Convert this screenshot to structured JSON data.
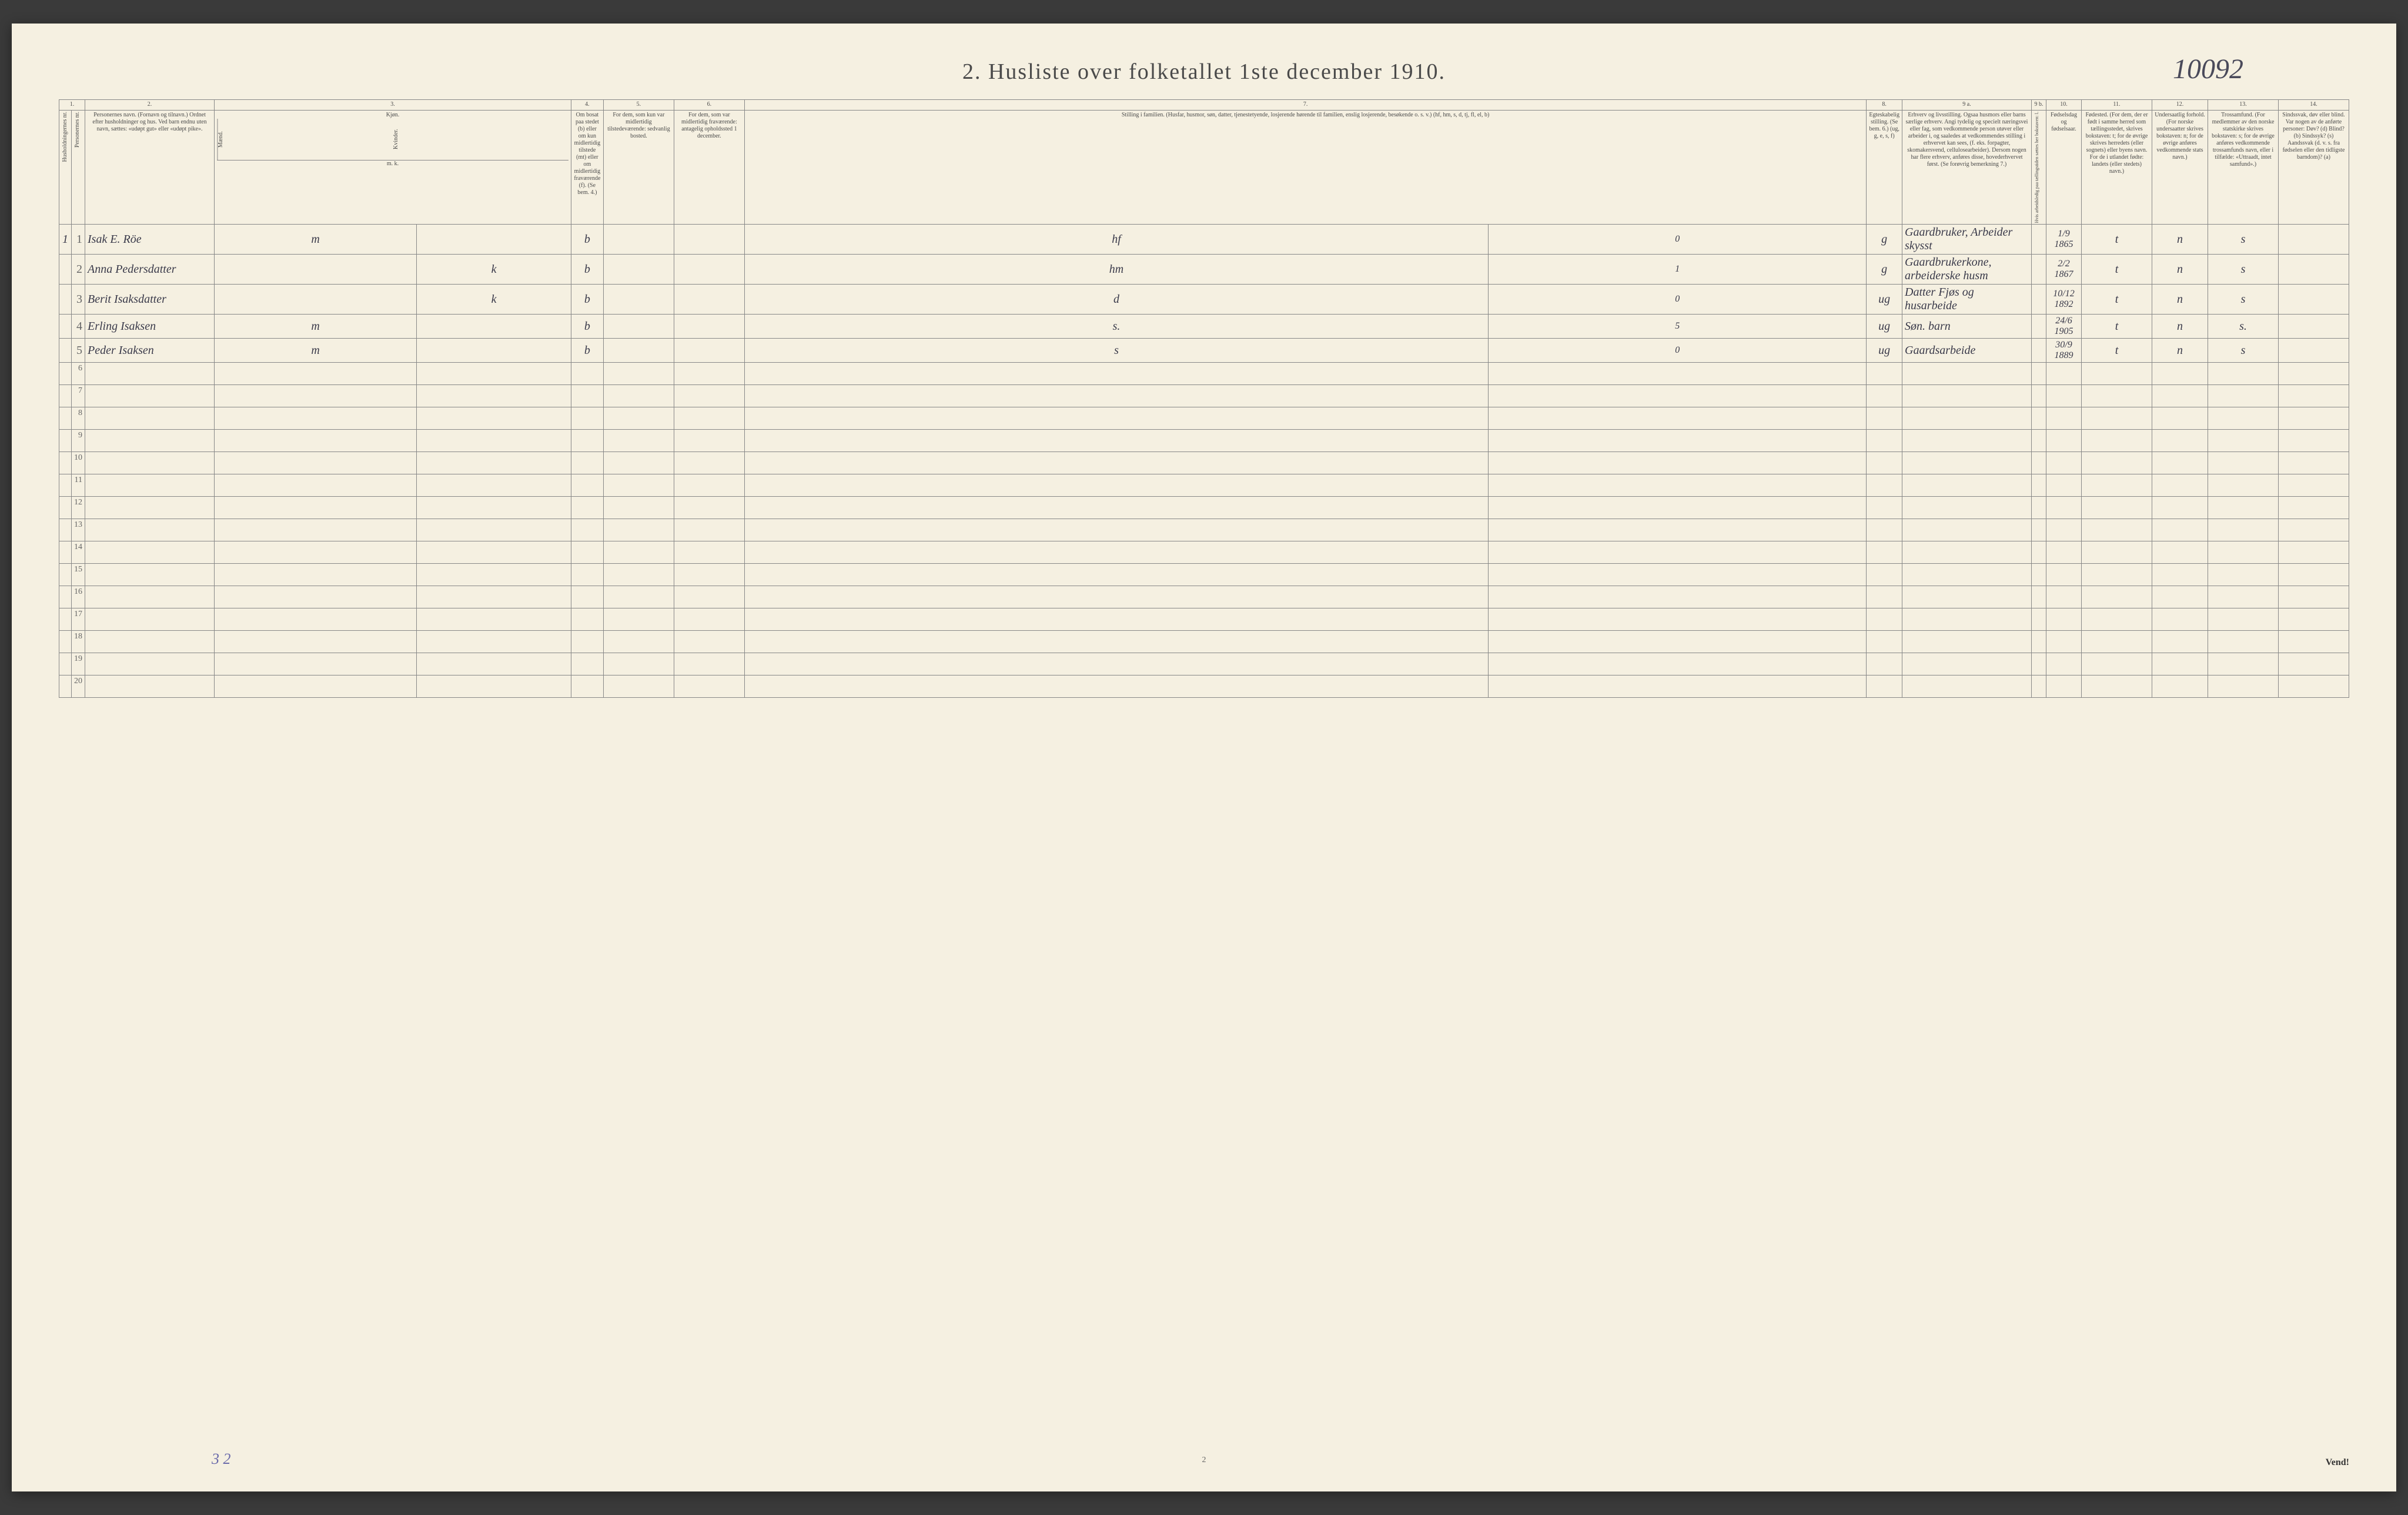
{
  "page": {
    "handwritten_top": "10092",
    "title": "2.   Husliste over folketallet 1ste december 1910.",
    "footer_tally": "3  2",
    "page_number": "2",
    "vend": "Vend!"
  },
  "column_numbers": [
    "1.",
    "2.",
    "3.",
    "4.",
    "5.",
    "6.",
    "7.",
    "8.",
    "9 a.",
    "9 b.",
    "10.",
    "11.",
    "12.",
    "13.",
    "14."
  ],
  "headers": {
    "col1a": "Husholdningernes nr.",
    "col1b": "Personernes nr.",
    "col2": "Personernes navn.\n(Fornavn og tilnavn.)\nOrdnet efter husholdninger og hus.\nVed barn endnu uten navn, sættes: «udøpt gut» eller «udøpt pike».",
    "col3": "Kjøn.",
    "col3a": "Mænd.",
    "col3b": "Kvinder.",
    "col3sub": "m.  k.",
    "col4": "Om bosat paa stedet (b) eller om kun midlertidig tilstede (mt) eller om midlertidig fraværende (f).\n(Se bem. 4.)",
    "col5": "For dem, som kun var midlertidig tilstedeværende:\n\nsedvanlig bosted.",
    "col6": "For dem, som var midlertidig fraværende:\n\nantagelig opholdssted 1 december.",
    "col7": "Stilling i familien.\n(Husfar, husmor, søn, datter, tjenestetyende, losjerende hørende til familien, enslig losjerende, besøkende o. s. v.)\n(hf, hm, s, d, tj, fl, el, b)",
    "col8": "Egteskabelig stilling.\n(Se bem. 6.)\n(ug, g, e, s, f)",
    "col9a": "Erhverv og livsstilling.\nOgsaa husmors eller barns særlige erhverv.\nAngi tydelig og specielt næringsvei eller fag, som vedkommende person utøver eller arbeider i, og saaledes at vedkommendes stilling i erhvervet kan sees, (f. eks. forpagter, skomakersvend, cellulosearbeider). Dersom nogen har flere erhverv, anføres disse, hovederhvervet først.\n(Se forøvrig bemerkning 7.)",
    "col9b": "Hvis arbeidsledig paa tællingstiden sættes her bokstaven: l.",
    "col10": "Fødselsdag og fødselsaar.",
    "col11": "Fødested.\n(For dem, der er født i samme herred som tællingsstedet, skrives bokstaven: t; for de øvrige skrives herredets (eller sognets) eller byens navn. For de i utlandet fødte: landets (eller stedets) navn.)",
    "col12": "Undersaatlig forhold.\n(For norske undersaatter skrives bokstaven: n; for de øvrige anføres vedkommende stats navn.)",
    "col13": "Trossamfund.\n(For medlemmer av den norske statskirke skrives bokstaven: s; for de øvrige anføres vedkommende trossamfunds navn, eller i tilfælde: «Uttraadt, intet samfund».)",
    "col14": "Sindssvak, døv eller blind.\nVar nogen av de anførte personer:\nDøv?      (d)\nBlind?     (b)\nSindssyk?  (s)\nAandssvak (d. v. s. fra fødselen eller den tidligste barndom)?  (a)"
  },
  "rows": [
    {
      "hh": "1",
      "pn": "1",
      "name": "Isak E. Röe",
      "sex_m": "m",
      "sex_k": "",
      "bosat": "b",
      "col5": "",
      "col6": "",
      "stilling": "hf",
      "note7b": "0",
      "egt": "g",
      "erhverv": "Gaardbruker, Arbeider skysst",
      "col9b": "",
      "fodsel": "1/9 1865",
      "fodested": "t",
      "under": "n",
      "tros": "s",
      "col14": ""
    },
    {
      "hh": "",
      "pn": "2",
      "name": "Anna Pedersdatter",
      "sex_m": "",
      "sex_k": "k",
      "bosat": "b",
      "col5": "",
      "col6": "",
      "stilling": "hm",
      "note7b": "1",
      "egt": "g",
      "erhverv": "Gaardbrukerkone, arbeiderske husm",
      "col9b": "",
      "fodsel": "2/2 1867",
      "fodested": "t",
      "under": "n",
      "tros": "s",
      "col14": ""
    },
    {
      "hh": "",
      "pn": "3",
      "name": "Berit Isaksdatter",
      "sex_m": "",
      "sex_k": "k",
      "bosat": "b",
      "col5": "",
      "col6": "",
      "stilling": "d",
      "note7b": "0",
      "egt": "ug",
      "erhverv": "Datter Fjøs og husarbeide",
      "col9b": "",
      "fodsel": "10/12 1892",
      "fodested": "t",
      "under": "n",
      "tros": "s",
      "col14": ""
    },
    {
      "hh": "",
      "pn": "4",
      "name": "Erling Isaksen",
      "sex_m": "m",
      "sex_k": "",
      "bosat": "b",
      "col5": "",
      "col6": "",
      "stilling": "s.",
      "note7b": "5",
      "egt": "ug",
      "erhverv": "Søn.  barn",
      "col9b": "",
      "fodsel": "24/6 1905",
      "fodested": "t",
      "under": "n",
      "tros": "s.",
      "col14": ""
    },
    {
      "hh": "",
      "pn": "5",
      "name": "Peder Isaksen",
      "sex_m": "m",
      "sex_k": "",
      "bosat": "b",
      "col5": "",
      "col6": "",
      "stilling": "s",
      "note7b": "0",
      "egt": "ug",
      "erhverv": "Gaardsarbeide",
      "col9b": "",
      "fodsel": "30/9 1889",
      "fodested": "t",
      "under": "n",
      "tros": "s",
      "col14": ""
    }
  ],
  "empty_row_numbers": [
    "6",
    "7",
    "8",
    "9",
    "10",
    "11",
    "12",
    "13",
    "14",
    "15",
    "16",
    "17",
    "18",
    "19",
    "20"
  ],
  "colors": {
    "page_bg": "#f5f0e1",
    "outer_bg": "#3a3a3a",
    "border": "#888888",
    "print_text": "#4a4a4a",
    "handwriting": "#3a3a4a",
    "pencil_purple": "#6a6aaa"
  },
  "typography": {
    "title_fontsize": 38,
    "header_fontsize": 10,
    "handwriting_fontsize": 22,
    "rownum_fontsize": 14
  }
}
